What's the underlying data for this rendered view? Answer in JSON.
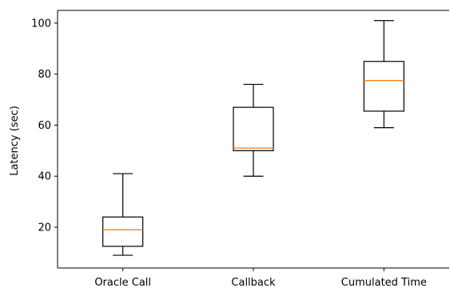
{
  "chart_data": {
    "type": "box",
    "title": "",
    "xlabel": "",
    "ylabel": "Latency (sec)",
    "categories": [
      "Oracle Call",
      "Callback",
      "Cumulated Time"
    ],
    "boxes": [
      {
        "name": "Oracle Call",
        "whislo": 9,
        "q1": 12.5,
        "med": 19,
        "q3": 24,
        "whishi": 41
      },
      {
        "name": "Callback",
        "whislo": 40,
        "q1": 50,
        "med": 51,
        "q3": 67,
        "whishi": 76
      },
      {
        "name": "Cumulated Time",
        "whislo": 59,
        "q1": 65.5,
        "med": 77.5,
        "q3": 85,
        "whishi": 101
      }
    ],
    "ylim": [
      4,
      105
    ],
    "yticks": [
      20,
      40,
      60,
      80,
      100
    ],
    "grid": false,
    "colors": {
      "box": "#000000",
      "median": "#ff7f0e"
    }
  }
}
